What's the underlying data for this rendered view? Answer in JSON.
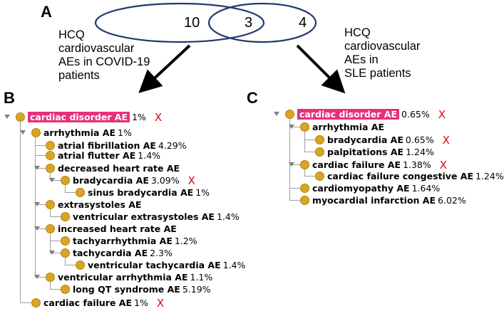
{
  "panels": {
    "a": "A",
    "b": "B",
    "c": "C"
  },
  "venn": {
    "left_only": "10",
    "overlap": "3",
    "right_only": "4"
  },
  "captions": {
    "left": [
      "HCQ",
      "cardiovascular",
      "AEs in COVID-19",
      "patients"
    ],
    "right": [
      "HCQ",
      "cardiovascular",
      "AEs in",
      "SLE patients"
    ]
  },
  "colors": {
    "node": "#DAA520",
    "highlight": "#E6307A",
    "mark": "#E8000B",
    "arrow": "#000000"
  },
  "tree_b": [
    {
      "label": "cardiac disorder AE",
      "pct": "1%",
      "mark": "X",
      "hl": true,
      "toggle": true
    },
    {
      "label": "arrhythmia AE",
      "pct": "1%",
      "toggle": true
    },
    {
      "label": "atrial fibrillation AE",
      "pct": "4.29%"
    },
    {
      "label": "atrial flutter AE",
      "pct": "1.4%"
    },
    {
      "label": "decreased heart rate AE",
      "pct": "",
      "toggle": true
    },
    {
      "label": "bradycardia AE",
      "pct": "3.09%",
      "mark": "X",
      "toggle": true
    },
    {
      "label": "sinus bradycardia AE",
      "pct": "1%"
    },
    {
      "label": "extrasystoles AE",
      "pct": "",
      "toggle": true
    },
    {
      "label": "ventricular extrasystoles AE",
      "pct": "1.4%"
    },
    {
      "label": "increased heart rate AE",
      "pct": "",
      "toggle": true
    },
    {
      "label": "tachyarrhythmia AE",
      "pct": "1.2%"
    },
    {
      "label": "tachycardia AE",
      "pct": "2.3%",
      "toggle": true
    },
    {
      "label": "ventricular tachycardia AE",
      "pct": "1.4%"
    },
    {
      "label": "ventricular arrhythmia AE",
      "pct": "1.1%",
      "toggle": true
    },
    {
      "label": "long QT syndrome AE",
      "pct": "5.19%"
    },
    {
      "label": "cardiac failure AE",
      "pct": "1%",
      "mark": "X"
    }
  ],
  "tree_c": [
    {
      "label": "cardiac disorder AE",
      "pct": "0.65%",
      "mark": "X",
      "hl": true,
      "toggle": true
    },
    {
      "label": "arrhythmia AE",
      "pct": "",
      "toggle": true
    },
    {
      "label": "bradycardia AE",
      "pct": "0.65%",
      "mark": "X"
    },
    {
      "label": "palpitations AE",
      "pct": "1.24%"
    },
    {
      "label": "cardiac failure AE",
      "pct": "1.38%",
      "mark": "X",
      "toggle": true
    },
    {
      "label": "cardiac failure congestive AE",
      "pct": "1.24%"
    },
    {
      "label": "cardiomyopathy AE",
      "pct": "1.64%"
    },
    {
      "label": "myocardial infarction AE",
      "pct": "6.02%"
    }
  ]
}
